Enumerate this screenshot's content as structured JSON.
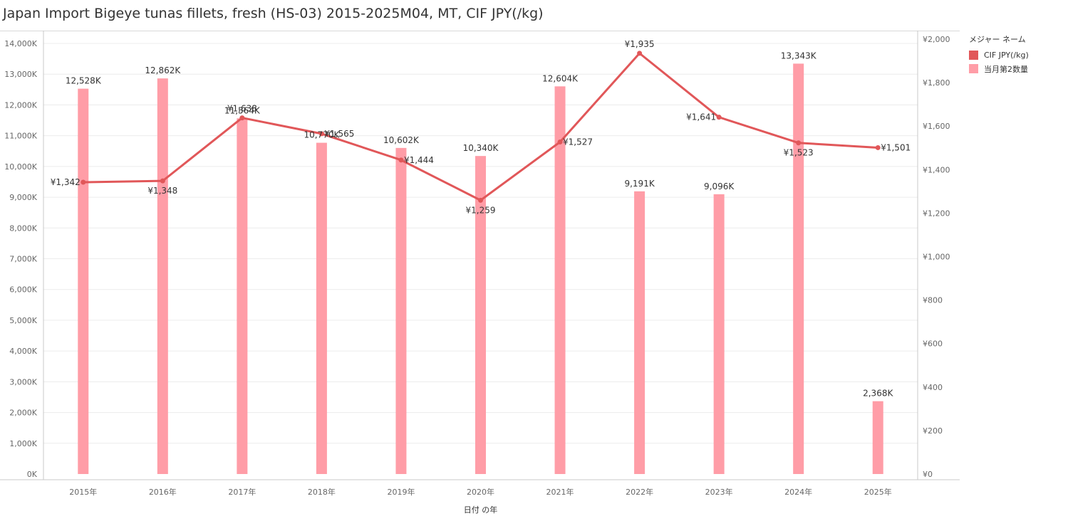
{
  "chart_data": {
    "type": "bar",
    "title": "Japan Import Bigeye tunas fillets, fresh (HS-03) 2015-2025M04, MT, CIF JPY(/kg)",
    "xlabel": "日付 の年",
    "categories": [
      "2015年",
      "2016年",
      "2017年",
      "2018年",
      "2019年",
      "2020年",
      "2021年",
      "2022年",
      "2023年",
      "2024年",
      "2025年"
    ],
    "series": [
      {
        "name": "当月第2数量",
        "type": "bar",
        "axis": "left",
        "values": [
          12528,
          12862,
          11564,
          10770,
          10602,
          10340,
          12604,
          9191,
          9096,
          13343,
          2368
        ],
        "labels": [
          "12,528K",
          "12,862K",
          "11,564K",
          "10,770K",
          "10,602K",
          "10,340K",
          "12,604K",
          "9,191K",
          "9,096K",
          "13,343K",
          "2,368K"
        ]
      },
      {
        "name": "CIF JPY(/kg)",
        "type": "line",
        "axis": "right",
        "values": [
          1342,
          1348,
          1638,
          1565,
          1444,
          1259,
          1527,
          1935,
          1641,
          1523,
          1501
        ],
        "labels": [
          "¥1,342",
          "¥1,348",
          "¥1,638",
          "¥1,565",
          "¥1,444",
          "¥1,259",
          "¥1,527",
          "¥1,935",
          "¥1,641",
          "¥1,523",
          "¥1,501"
        ],
        "label_position": [
          "left",
          "below",
          "above",
          "right",
          "right",
          "below",
          "right",
          "above",
          "left",
          "below",
          "right"
        ]
      }
    ],
    "y_left": {
      "ylim": [
        0,
        14000
      ],
      "ticks": [
        0,
        1000,
        2000,
        3000,
        4000,
        5000,
        6000,
        7000,
        8000,
        9000,
        10000,
        11000,
        12000,
        13000,
        14000
      ],
      "tick_labels": [
        "0K",
        "1,000K",
        "2,000K",
        "3,000K",
        "4,000K",
        "5,000K",
        "6,000K",
        "7,000K",
        "8,000K",
        "9,000K",
        "10,000K",
        "11,000K",
        "12,000K",
        "13,000K",
        "14,000K"
      ]
    },
    "y_right": {
      "ylim": [
        0,
        2000
      ],
      "ticks": [
        0,
        200,
        400,
        600,
        800,
        1000,
        1200,
        1400,
        1600,
        1800,
        2000
      ],
      "tick_labels": [
        "¥0",
        "¥200",
        "¥400",
        "¥600",
        "¥800",
        "¥1,000",
        "¥1,200",
        "¥1,400",
        "¥1,600",
        "¥1,800",
        "¥2,000"
      ]
    },
    "legend": {
      "title": "メジャー ネーム",
      "placement": "right",
      "items": [
        {
          "label": "CIF JPY(/kg)",
          "color": "#e15759"
        },
        {
          "label": "当月第2数量",
          "color": "#ff9da7"
        }
      ]
    },
    "colors": {
      "bar": "#ff9da7",
      "line": "#e15759",
      "grid": "#ececec",
      "axis": "#c8c8c8",
      "tick_text": "#666666",
      "label_text": "#333333"
    },
    "grid": true
  }
}
